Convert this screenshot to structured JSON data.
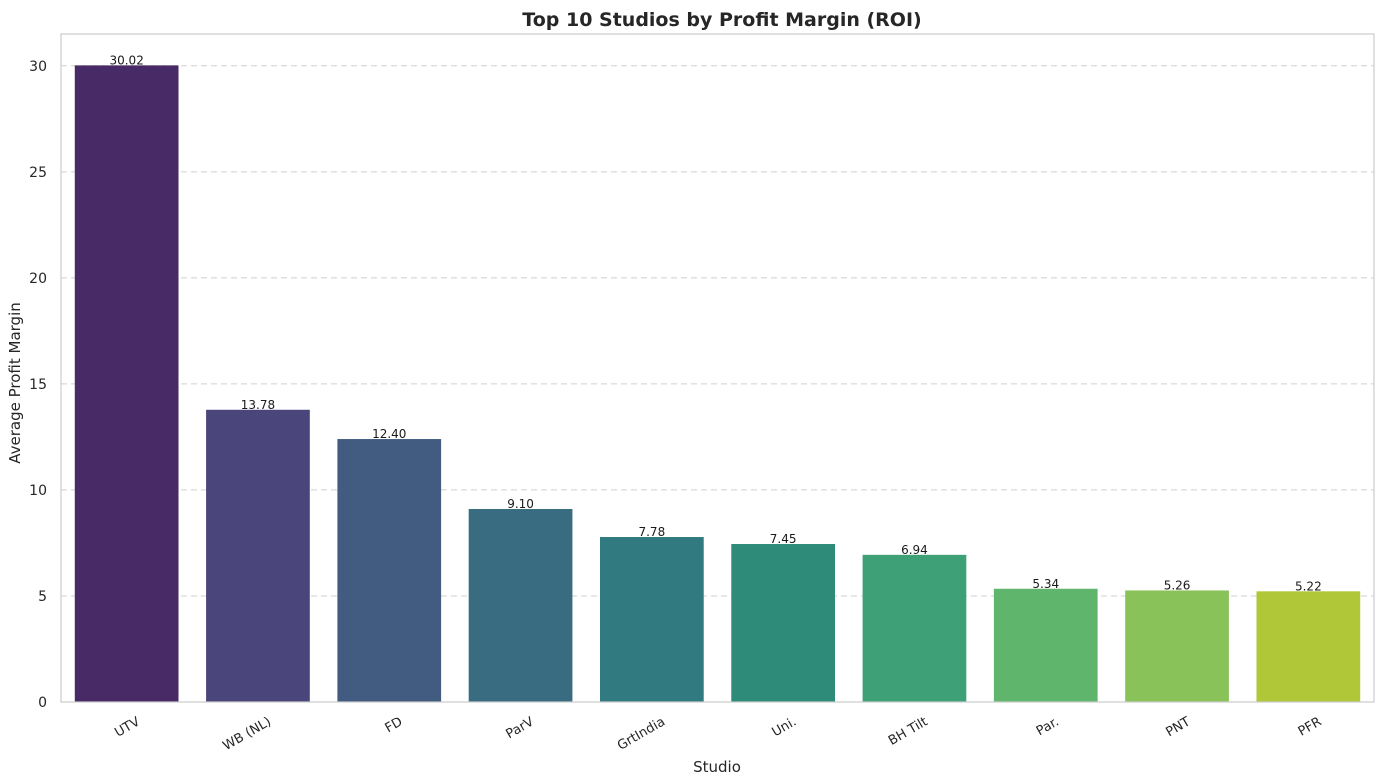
{
  "chart_data": {
    "type": "bar",
    "title": "Top 10 Studios by Profit Margin (ROI)",
    "xlabel": "Studio",
    "ylabel": "Average Profit Margin",
    "categories": [
      "UTV",
      "WB (NL)",
      "FD",
      "ParV",
      "GrtIndia",
      "Uni.",
      "BH Tilt",
      "Par.",
      "PNT",
      "PFR"
    ],
    "values": [
      30.02,
      13.78,
      12.4,
      9.1,
      7.78,
      7.45,
      6.94,
      5.34,
      5.26,
      5.22
    ],
    "data_labels": [
      "30.02",
      "13.78",
      "12.40",
      "9.10",
      "7.78",
      "7.45",
      "6.94",
      "5.34",
      "5.26",
      "5.22"
    ],
    "yticks": [
      0,
      5,
      10,
      15,
      20,
      25,
      30
    ],
    "ylim": [
      0,
      31.5
    ],
    "grid": "y-dashed",
    "colors": [
      "#482b66",
      "#4a467b",
      "#425c81",
      "#396c80",
      "#317b80",
      "#2e8b7a",
      "#3da076",
      "#60b56c",
      "#89c259",
      "#b0c737"
    ]
  }
}
